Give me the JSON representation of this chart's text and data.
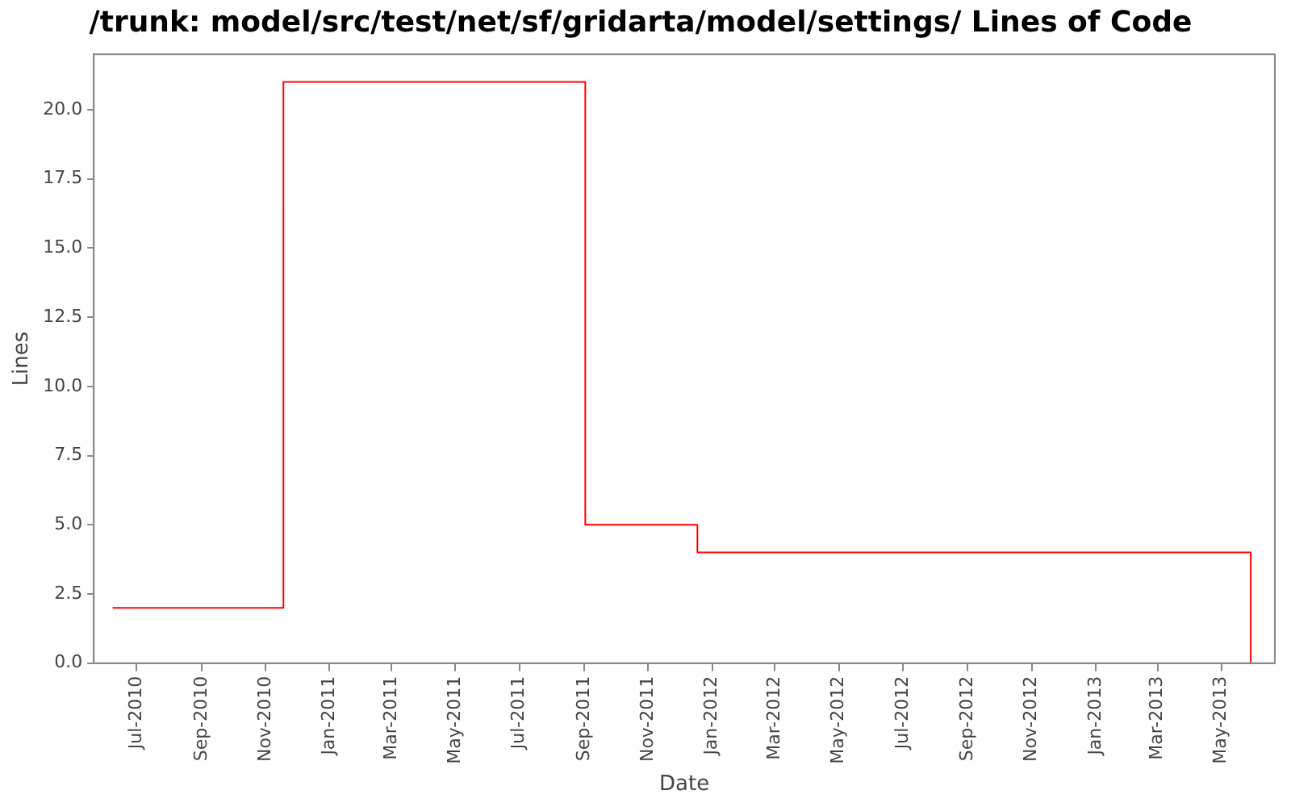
{
  "chart_data": {
    "type": "step",
    "title": "/trunk: model/src/test/net/sf/gridarta/model/settings/ Lines of Code",
    "xlabel": "Date",
    "ylabel": "Lines",
    "x": [
      "2010-06-08",
      "2010-11-18",
      "2011-09-02",
      "2011-12-18",
      "2013-05-29"
    ],
    "series": [
      {
        "color": "#ff0000",
        "values": [
          2,
          21,
          5,
          4,
          0
        ]
      }
    ],
    "xlim": [
      "2010-05-21",
      "2013-06-21"
    ],
    "xticks": [
      {
        "value": "2010-07-01",
        "label": "Jul-2010"
      },
      {
        "value": "2010-09-01",
        "label": "Sep-2010"
      },
      {
        "value": "2010-11-01",
        "label": "Nov-2010"
      },
      {
        "value": "2011-01-01",
        "label": "Jan-2011"
      },
      {
        "value": "2011-03-01",
        "label": "Mar-2011"
      },
      {
        "value": "2011-05-01",
        "label": "May-2011"
      },
      {
        "value": "2011-07-01",
        "label": "Jul-2011"
      },
      {
        "value": "2011-09-01",
        "label": "Sep-2011"
      },
      {
        "value": "2011-11-01",
        "label": "Nov-2011"
      },
      {
        "value": "2012-01-01",
        "label": "Jan-2012"
      },
      {
        "value": "2012-03-01",
        "label": "Mar-2012"
      },
      {
        "value": "2012-05-01",
        "label": "May-2012"
      },
      {
        "value": "2012-07-01",
        "label": "Jul-2012"
      },
      {
        "value": "2012-09-01",
        "label": "Sep-2012"
      },
      {
        "value": "2012-11-01",
        "label": "Nov-2012"
      },
      {
        "value": "2013-01-01",
        "label": "Jan-2013"
      },
      {
        "value": "2013-03-01",
        "label": "Mar-2013"
      },
      {
        "value": "2013-05-01",
        "label": "May-2013"
      }
    ],
    "ylim": [
      0,
      22
    ],
    "yticks": [
      {
        "value": 0,
        "label": "0.0"
      },
      2.5,
      {
        "value": 5,
        "label": "5.0"
      },
      7.5,
      {
        "value": 10,
        "label": "10.0"
      },
      12.5,
      {
        "value": 15,
        "label": "15.0"
      },
      17.5,
      {
        "value": 20,
        "label": "20.0"
      }
    ],
    "grid": false,
    "legend": false,
    "marker": "none",
    "line_style": "solid"
  }
}
